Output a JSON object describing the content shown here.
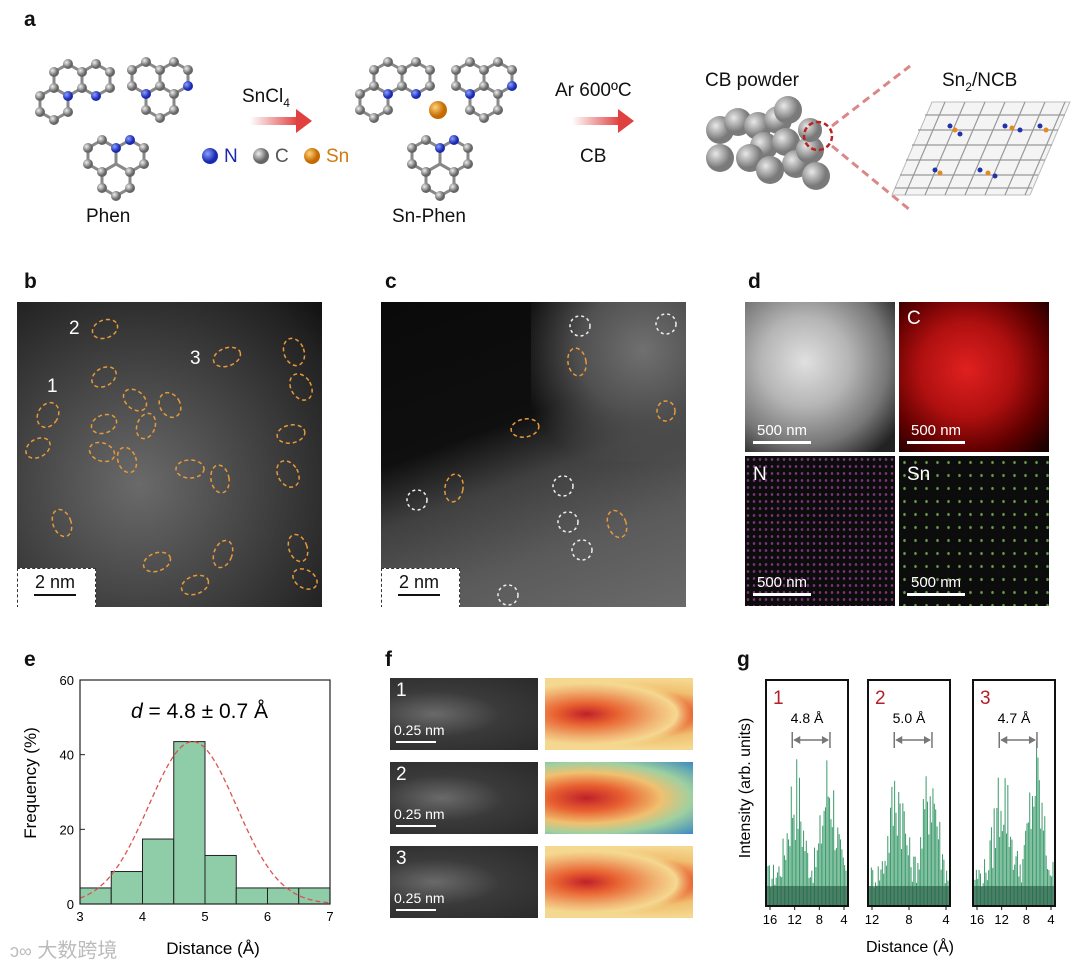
{
  "panels": {
    "a": {
      "label": "a",
      "phen_label": "Phen",
      "reagent1": "SnCl",
      "reagent1_sub": "4",
      "legend": {
        "n": "N",
        "c": "C",
        "sn": "Sn"
      },
      "snphen_label": "Sn-Phen",
      "cond_top": "Ar 600ºC",
      "cond_bottom": "CB",
      "cb_powder": "CB powder",
      "product_pre": "Sn",
      "product_sub": "2",
      "product_post": "/NCB"
    },
    "b": {
      "label": "b",
      "site_labels": [
        "2",
        "3",
        "1"
      ],
      "scale": "2 nm"
    },
    "c": {
      "label": "c",
      "scale": "2 nm"
    },
    "d": {
      "label": "d",
      "maps": [
        "C",
        "N",
        "Sn"
      ],
      "scale": "500 nm"
    },
    "e": {
      "label": "e",
      "annotation_var": "d",
      "annotation_rest": " = 4.8 ± 0.7 Å"
    },
    "f": {
      "label": "f",
      "rows": [
        "1",
        "2",
        "3"
      ],
      "scale": "0.25 nm"
    },
    "g": {
      "label": "g",
      "panels": [
        {
          "id": "1",
          "distance": "4.8 Å",
          "ticks": [
            "16",
            "12",
            "8",
            "4"
          ]
        },
        {
          "id": "2",
          "distance": "5.0 Å",
          "ticks": [
            "12",
            "8",
            "4"
          ]
        },
        {
          "id": "3",
          "distance": "4.7 Å",
          "ticks": [
            "16",
            "12",
            "8",
            "4"
          ]
        }
      ],
      "ylabel": "Intensity (arb. units)",
      "xlabel": "Distance (Å)"
    }
  },
  "chart_data": {
    "type": "bar",
    "xlabel": "Distance (Å)",
    "ylabel": "Frequency (%)",
    "xlim": [
      3,
      7
    ],
    "ylim": [
      0,
      60
    ],
    "xticks": [
      "3",
      "4",
      "5",
      "6",
      "7"
    ],
    "yticks": [
      "0",
      "20",
      "40",
      "60"
    ],
    "bins": [
      [
        3.0,
        3.5
      ],
      [
        3.5,
        4.0
      ],
      [
        4.0,
        4.5
      ],
      [
        4.5,
        5.0
      ],
      [
        5.0,
        5.5
      ],
      [
        5.5,
        6.0
      ],
      [
        6.0,
        6.5
      ],
      [
        6.5,
        7.0
      ]
    ],
    "values": [
      4.3,
      8.7,
      17.4,
      43.5,
      13.0,
      4.3,
      4.3,
      4.3
    ],
    "fit": {
      "mean": 4.8,
      "sigma": 0.7,
      "peak": 43.5
    },
    "bar_color": "#8fcca8",
    "fit_color": "#d9534f"
  },
  "watermark": "大数跨境"
}
